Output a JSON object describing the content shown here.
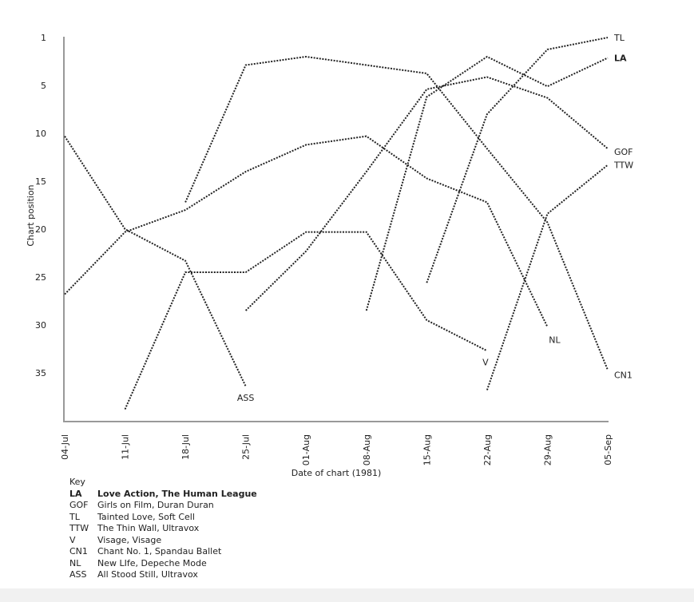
{
  "chart_data": {
    "type": "line",
    "title": "",
    "xlabel": "Date of chart (1981)",
    "ylabel": "Chart position",
    "categories": [
      "04-Jul",
      "11-Jul",
      "18-Jul",
      "25-Jul",
      "01-Aug",
      "08-Aug",
      "15-Aug",
      "22-Aug",
      "29-Aug",
      "05-Sep"
    ],
    "y_ticks": [
      1,
      5,
      10,
      15,
      20,
      25,
      30,
      35
    ],
    "ylim": [
      1,
      40
    ],
    "y_reversed": true,
    "grid": false,
    "line_style": "dotted",
    "line_color": "#222222",
    "axis_color": "#999999",
    "series": [
      {
        "name": "TL",
        "bold": false,
        "values": [
          null,
          null,
          null,
          null,
          null,
          null,
          25.6,
          8,
          2,
          1
        ]
      },
      {
        "name": "LA",
        "bold": true,
        "values": [
          null,
          null,
          null,
          null,
          null,
          28.5,
          6.2,
          2.6,
          5.1,
          2.7
        ]
      },
      {
        "name": "GOF",
        "bold": false,
        "values": [
          null,
          null,
          null,
          28.5,
          22.3,
          14,
          5.4,
          4.3,
          6.3,
          11.6
        ]
      },
      {
        "name": "TTW",
        "bold": false,
        "values": [
          null,
          null,
          null,
          null,
          null,
          null,
          null,
          36.8,
          18.4,
          13.3
        ]
      },
      {
        "name": "CN1",
        "bold": false,
        "values": [
          null,
          null,
          17.2,
          3.3,
          2.6,
          3.3,
          4,
          11.6,
          19.3,
          34.7
        ]
      },
      {
        "name": "NL",
        "bold": false,
        "values": [
          26.8,
          20.3,
          18,
          14,
          11.2,
          10.3,
          14.7,
          17.2,
          30.2,
          null
        ]
      },
      {
        "name": "ASS",
        "bold": false,
        "values": [
          10.3,
          20,
          23.3,
          36.4,
          null,
          null,
          null,
          null,
          null,
          null
        ]
      },
      {
        "name": "V",
        "bold": false,
        "values": [
          null,
          38.8,
          24.5,
          24.5,
          20.3,
          20.3,
          29.5,
          32.7,
          null,
          null
        ]
      }
    ]
  },
  "key": {
    "title": "Key",
    "items": [
      {
        "code": "LA",
        "label": "Love Action, The Human League",
        "bold": true
      },
      {
        "code": "GOF",
        "label": "Girls on Film, Duran Duran"
      },
      {
        "code": "TL",
        "label": "Tainted Love, Soft Cell"
      },
      {
        "code": "TTW",
        "label": "The Thin Wall, Ultravox"
      },
      {
        "code": "V",
        "label": "Visage, Visage"
      },
      {
        "code": "CN1",
        "label": "Chant No. 1, Spandau Ballet"
      },
      {
        "code": "NL",
        "label": "New LIfe, Depeche Mode"
      },
      {
        "code": "ASS",
        "label": "All Stood Still, Ultravox"
      }
    ]
  }
}
